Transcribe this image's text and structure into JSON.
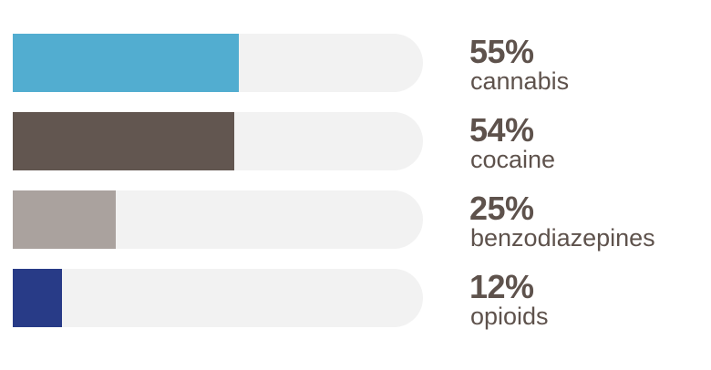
{
  "chart_data": {
    "type": "bar",
    "orientation": "horizontal",
    "xlim": [
      0,
      100
    ],
    "unit": "%",
    "grid": false,
    "legend": "none",
    "categories": [
      "cannabis",
      "cocaine",
      "benzodiazepines",
      "opioids"
    ],
    "values": [
      55,
      54,
      25,
      12
    ],
    "value_labels": [
      "55%",
      "54%",
      "25%",
      "12%"
    ],
    "colors": [
      "#52add0",
      "#625650",
      "#aaa29e",
      "#283b87"
    ],
    "track_color": "#f2f2f2",
    "text_color": "#5e524c"
  }
}
